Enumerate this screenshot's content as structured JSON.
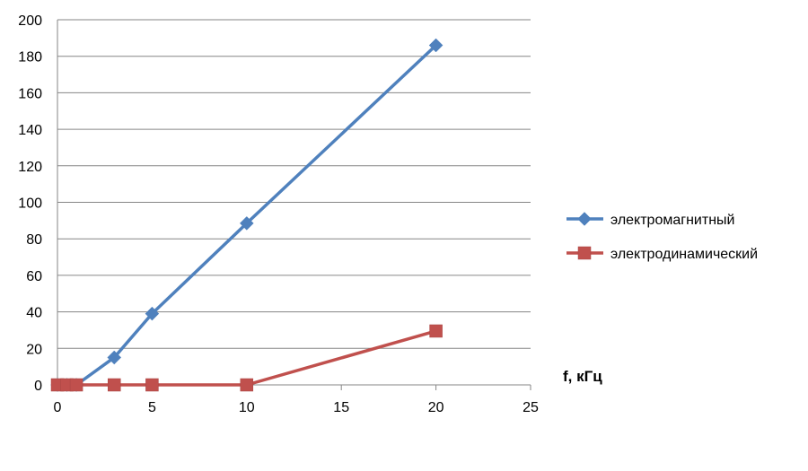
{
  "chart_data": {
    "type": "line",
    "title": "",
    "xlabel": "f, кГц",
    "ylabel": "",
    "xlim": [
      0,
      25
    ],
    "ylim": [
      0,
      200
    ],
    "x_ticks": [
      0,
      5,
      10,
      15,
      20,
      25
    ],
    "y_ticks": [
      0,
      20,
      40,
      60,
      80,
      100,
      120,
      140,
      160,
      180,
      200
    ],
    "grid": "horizontal",
    "legend_position": "right",
    "series": [
      {
        "name": "электромагнитный",
        "color": "#4F81BD",
        "marker": "diamond",
        "x": [
          0,
          0.5,
          1,
          3,
          5,
          10,
          20
        ],
        "y": [
          0,
          0,
          0,
          15,
          39,
          88.5,
          186
        ]
      },
      {
        "name": "электродинамический",
        "color": "#C0504D",
        "marker": "square",
        "x": [
          0,
          0.5,
          1,
          3,
          5,
          10,
          20
        ],
        "y": [
          0,
          0,
          0,
          0,
          0,
          0,
          29.5
        ]
      }
    ]
  }
}
